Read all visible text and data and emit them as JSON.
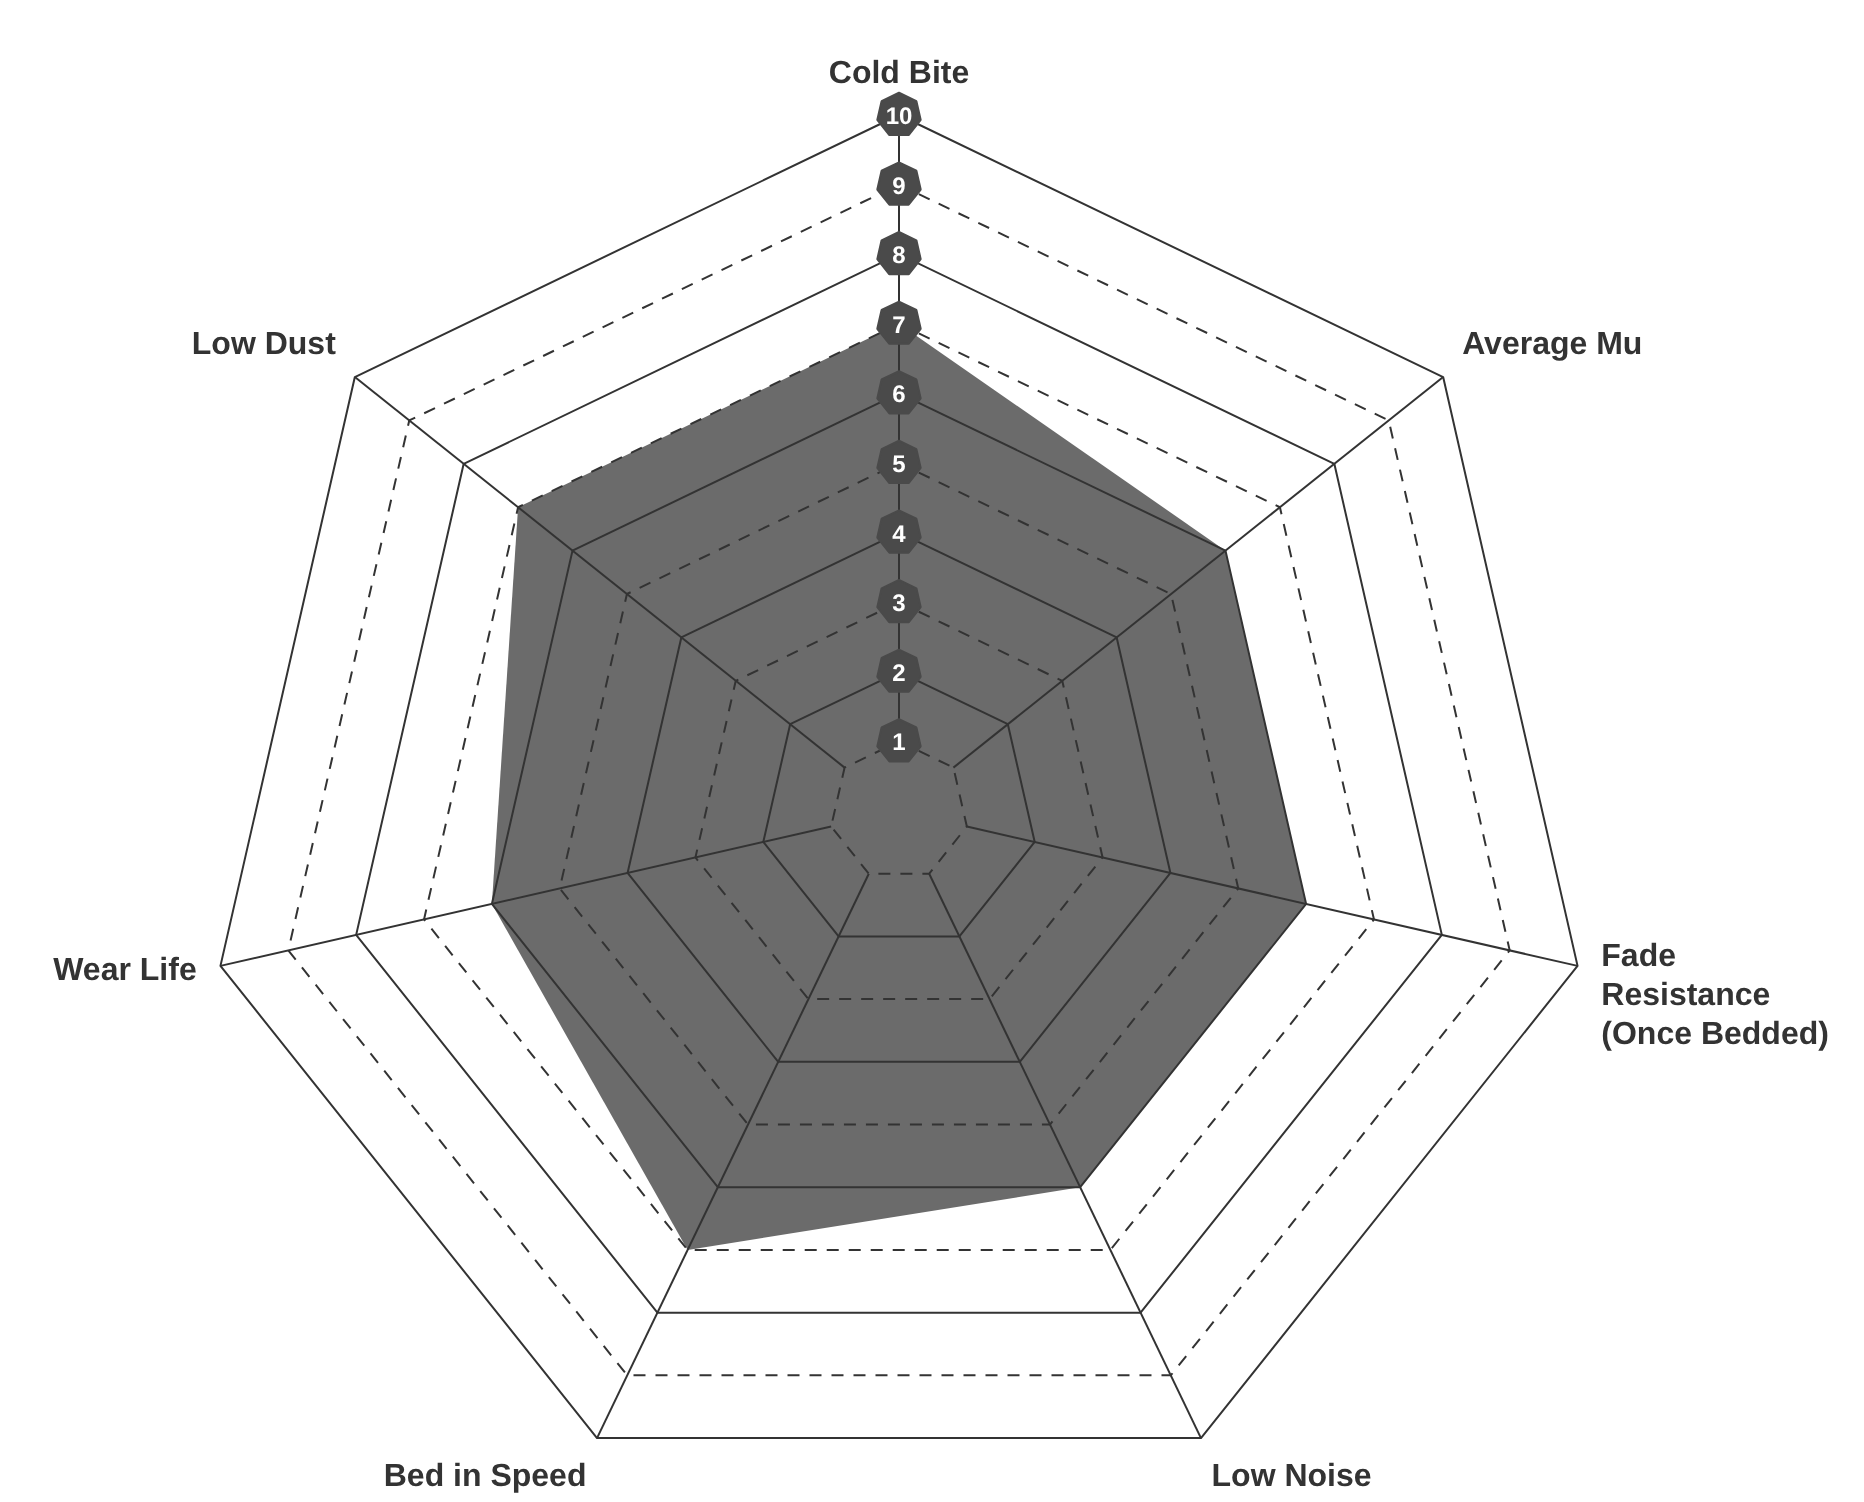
{
  "chart_data": {
    "type": "radar",
    "categories": [
      "Cold Bite",
      "Average Mu",
      "Fade\nResistance\n(Once Bedded)",
      "Low Noise",
      "Bed in Speed",
      "Wear Life",
      "Low Dust"
    ],
    "series": [
      {
        "color": "#6b6b6b",
        "values": [
          7,
          6,
          6,
          6,
          7,
          6,
          7
        ]
      }
    ],
    "ylim": [
      0,
      10
    ],
    "yticks": [
      1,
      2,
      3,
      4,
      5,
      6,
      7,
      8,
      9,
      10
    ]
  }
}
